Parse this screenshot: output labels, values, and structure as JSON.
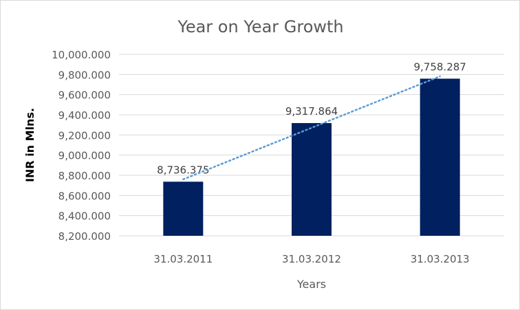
{
  "chart_data": {
    "type": "bar",
    "title": "Year on Year Growth",
    "xlabel": "Years",
    "ylabel": "INR in Mlns.",
    "categories": [
      "31.03.2011",
      "31.03.2012",
      "31.03.2013"
    ],
    "values": [
      8736.375,
      9317.864,
      9758.287
    ],
    "data_labels": [
      "8,736.375",
      "9,317.864",
      "9,758.287"
    ],
    "ylim": [
      8200,
      10000
    ],
    "yticks": [
      8200,
      8400,
      8600,
      8800,
      9000,
      9200,
      9400,
      9600,
      9800,
      10000
    ],
    "ytick_labels": [
      "8,200.000",
      "8,400.000",
      "8,600.000",
      "8,800.000",
      "9,000.000",
      "9,200.000",
      "9,400.000",
      "9,600.000",
      "9,800.000",
      "10,000.000"
    ],
    "grid": true,
    "trendline": "linear",
    "colors": {
      "bar": "#002060",
      "trendline": "#5b9bd5",
      "grid": "#d9d9d9",
      "text": "#595959"
    }
  }
}
